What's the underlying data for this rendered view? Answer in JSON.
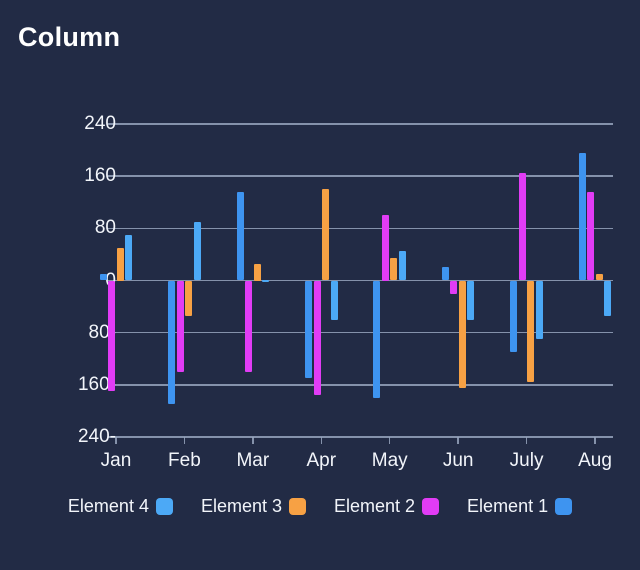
{
  "page": {
    "background": "#222B45",
    "title": "Column"
  },
  "chart_data": {
    "type": "bar",
    "title": "Column",
    "categories": [
      "Jan",
      "Feb",
      "Mar",
      "Apr",
      "May",
      "Jun",
      "July",
      "Aug"
    ],
    "series": [
      {
        "name": "Element 1",
        "color": "#3E94F0",
        "values": [
          10,
          -190,
          135,
          -150,
          -180,
          20,
          -110,
          195
        ]
      },
      {
        "name": "Element 2",
        "color": "#E13CF5",
        "values": [
          -170,
          -140,
          -140,
          -175,
          100,
          -20,
          165,
          135
        ]
      },
      {
        "name": "Element 3",
        "color": "#F7A144",
        "values": [
          50,
          -55,
          25,
          140,
          35,
          -165,
          -155,
          10
        ]
      },
      {
        "name": "Element 4",
        "color": "#4CA9F6",
        "values": [
          70,
          90,
          0,
          -60,
          45,
          -60,
          -90,
          -55
        ]
      }
    ],
    "ylim": [
      -240,
      240
    ],
    "yticks": [
      {
        "value": 240,
        "label": "240"
      },
      {
        "value": 160,
        "label": "160"
      },
      {
        "value": 80,
        "label": "80"
      },
      {
        "value": 0,
        "label": "0"
      },
      {
        "value": -80,
        "label": "80-"
      },
      {
        "value": -160,
        "label": "160-"
      },
      {
        "value": -240,
        "label": "240-"
      }
    ],
    "grid": true,
    "legend_position": "bottom",
    "legend_items": [
      {
        "name": "Element 4",
        "color": "#4CA9F6"
      },
      {
        "name": "Element 3",
        "color": "#F7A144"
      },
      {
        "name": "Element 2",
        "color": "#E13CF5"
      },
      {
        "name": "Element 1",
        "color": "#3E94F0"
      }
    ],
    "colors": {
      "background": "#222B45",
      "gridline": "#97A4BD",
      "text": "#F2F5FA",
      "title": "#FFFFFF"
    }
  }
}
